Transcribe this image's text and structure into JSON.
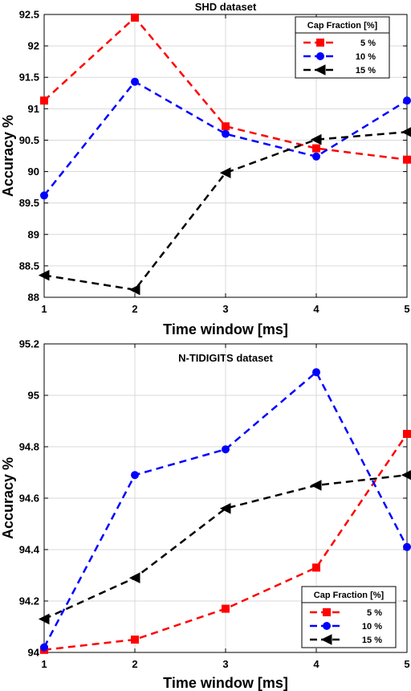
{
  "chart_data": [
    {
      "type": "line",
      "title": "SHD dataset",
      "xlabel": "Time window [ms]",
      "ylabel": "Accuracy %",
      "x": [
        1,
        2,
        3,
        4,
        5
      ],
      "xticks": [
        "1",
        "2",
        "3",
        "4",
        "5"
      ],
      "ylim": [
        88,
        92.5
      ],
      "yticks": [
        "88",
        "88.5",
        "89",
        "89.5",
        "90",
        "90.5",
        "91",
        "91.5",
        "92",
        "92.5"
      ],
      "grid": true,
      "legend": {
        "title": "Cap Fraction [%]",
        "position": "top-right"
      },
      "series": [
        {
          "name": "5 %",
          "color": "#ff0000",
          "marker": "square",
          "values": [
            91.13,
            92.45,
            90.72,
            90.37,
            90.19
          ]
        },
        {
          "name": "10 %",
          "color": "#0000ff",
          "marker": "circle",
          "values": [
            89.62,
            91.43,
            90.6,
            90.24,
            91.13
          ]
        },
        {
          "name": "15 %",
          "color": "#000000",
          "marker": "triangle-left",
          "values": [
            88.35,
            88.12,
            89.98,
            90.51,
            90.63
          ]
        }
      ]
    },
    {
      "type": "line",
      "title": "N-TIDIGITS dataset",
      "xlabel": "Time window [ms]",
      "ylabel": "Accuracy %",
      "x": [
        1,
        2,
        3,
        4,
        5
      ],
      "xticks": [
        "1",
        "2",
        "3",
        "4",
        "5"
      ],
      "ylim": [
        94,
        95.2
      ],
      "yticks": [
        "94",
        "94.2",
        "94.4",
        "94.6",
        "94.8",
        "95",
        "95.2"
      ],
      "grid": true,
      "legend": {
        "title": "Cap Fraction [%]",
        "position": "bottom-right"
      },
      "series": [
        {
          "name": "5 %",
          "color": "#ff0000",
          "marker": "square",
          "values": [
            94.01,
            94.05,
            94.17,
            94.33,
            94.85
          ]
        },
        {
          "name": "10 %",
          "color": "#0000ff",
          "marker": "circle",
          "values": [
            94.02,
            94.69,
            94.79,
            95.09,
            94.41
          ]
        },
        {
          "name": "15 %",
          "color": "#000000",
          "marker": "triangle-left",
          "values": [
            94.13,
            94.29,
            94.56,
            94.65,
            94.69
          ]
        }
      ]
    }
  ]
}
